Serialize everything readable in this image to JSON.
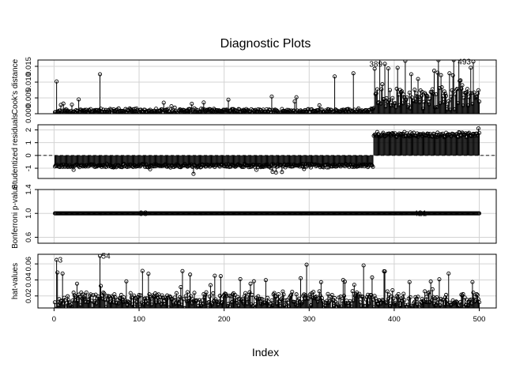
{
  "chart_data": {
    "type": "scatter",
    "title": "Diagnostic Plots",
    "xlabel": "Index",
    "x_range": [
      1,
      500
    ],
    "x_ticks": [
      0,
      100,
      200,
      300,
      400,
      500
    ],
    "grid": true,
    "panels": [
      {
        "ylabel": "Cook's distance",
        "ylim": [
          0,
          0.017
        ],
        "y_ticks": [
          0.0,
          0.005,
          0.01,
          0.015
        ],
        "y_tick_labels": [
          "0.000",
          "0.005",
          "0.010",
          "0.015"
        ],
        "reference_line": null,
        "style": "spikes",
        "generation": {
          "segments": [
            {
              "from": 1,
              "to": 375,
              "base": 0.0006,
              "spread": 0.0011,
              "spike_rate": 0.05,
              "spike_max": 0.005
            },
            {
              "from": 376,
              "to": 500,
              "base": 0.0035,
              "spread": 0.0065,
              "spike_rate": 0.18,
              "spike_max": 0.012
            }
          ],
          "seed": 11
        },
        "fixed_points": [
          [
            3,
            0.0102
          ],
          [
            54,
            0.0125
          ],
          [
            330,
            0.0118
          ],
          [
            352,
            0.0128
          ],
          [
            389,
            0.0158
          ],
          [
            420,
            0.0125
          ],
          [
            465,
            0.0128
          ],
          [
            493,
            0.0165
          ]
        ],
        "labels": [
          {
            "index": 389,
            "text": "389"
          },
          {
            "index": 493,
            "text": "493"
          }
        ]
      },
      {
        "ylabel": "Studentized residuals",
        "ylim": [
          -1.8,
          2.4
        ],
        "y_ticks": [
          -1,
          0,
          1,
          2
        ],
        "y_tick_labels": [
          "-1",
          "0",
          "1",
          "2"
        ],
        "reference_line": 0,
        "style": "spikes",
        "generation": {
          "segments": [
            {
              "from": 1,
              "to": 375,
              "base": -0.85,
              "spread": 0.22,
              "spike_rate": 0.03,
              "spike_max": 0.7
            },
            {
              "from": 376,
              "to": 500,
              "base": 1.55,
              "spread": 0.32,
              "spike_rate": 0.04,
              "spike_max": 0.6
            }
          ],
          "seed": 23
        },
        "fixed_points": [],
        "labels": []
      },
      {
        "ylabel": "Bonferroni p-value",
        "ylim": [
          0.5,
          1.4
        ],
        "y_ticks": [
          0.6,
          1.0,
          1.4
        ],
        "y_tick_labels": [
          "0.6",
          "1.0",
          "1.4"
        ],
        "reference_line": null,
        "style": "constant",
        "constant_value": 1.0,
        "labels": [
          {
            "index": 98,
            "text": "98"
          },
          {
            "index": 421,
            "text": "421"
          }
        ]
      },
      {
        "ylabel": "hat-values",
        "ylim": [
          0.005,
          0.072
        ],
        "y_ticks": [
          0.02,
          0.04,
          0.06
        ],
        "y_tick_labels": [
          "0.02",
          "0.04",
          "0.06"
        ],
        "reference_line": null,
        "style": "spikes",
        "generation": {
          "segments": [
            {
              "from": 1,
              "to": 500,
              "base": 0.011,
              "spread": 0.016,
              "spike_rate": 0.09,
              "spike_max": 0.04
            }
          ],
          "seed": 37
        },
        "fixed_points": [
          [
            3,
            0.065
          ],
          [
            54,
            0.07
          ]
        ],
        "labels": [
          {
            "index": 3,
            "text": "3"
          },
          {
            "index": 54,
            "text": "54"
          }
        ]
      }
    ]
  }
}
